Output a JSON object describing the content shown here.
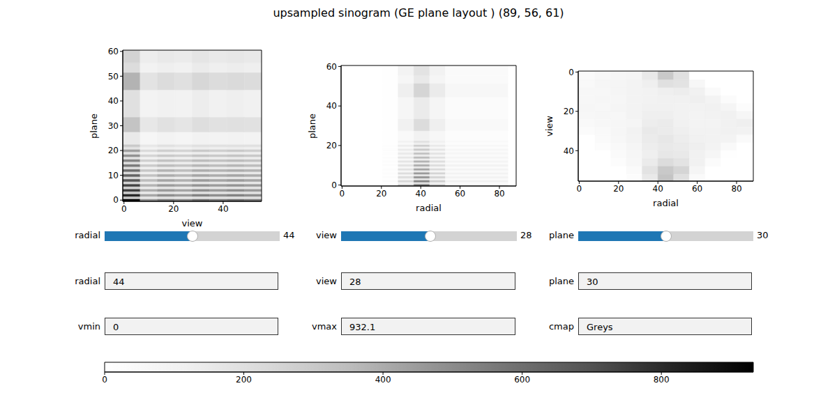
{
  "title": "upsampled sinogram (GE plane layout ) (89, 56, 61)",
  "chart_data": [
    {
      "type": "heatmap",
      "x_label": "view",
      "y_label": "plane",
      "xlim": [
        -0.5,
        55.5
      ],
      "ylim": [
        -0.5,
        60.5
      ],
      "xticks": [
        0,
        20,
        40
      ],
      "yticks": [
        0,
        10,
        20,
        30,
        40,
        50,
        60
      ],
      "x_edges": [
        -0.5,
        6.5,
        13.5,
        20.5,
        27.5,
        34.5,
        41.5,
        48.5,
        55.5
      ],
      "y_edges": [
        -0.5,
        0.5,
        1.5,
        2.5,
        3.5,
        4.5,
        5.5,
        6.5,
        7.5,
        8.5,
        9.5,
        10.5,
        11.5,
        12.5,
        13.5,
        14.5,
        15.5,
        16.5,
        17.5,
        18.5,
        19.5,
        20.5,
        21.5,
        22.5,
        27.5,
        33.5,
        44.5,
        51.5,
        55.5,
        60.5
      ],
      "cells": [
        [
          930,
          480,
          560,
          520,
          600,
          560,
          600,
          560
        ],
        [
          300,
          160,
          190,
          170,
          200,
          190,
          200,
          190
        ],
        [
          820,
          420,
          500,
          460,
          540,
          500,
          540,
          500
        ],
        [
          280,
          150,
          180,
          160,
          190,
          180,
          190,
          180
        ],
        [
          760,
          400,
          460,
          430,
          500,
          460,
          500,
          460
        ],
        [
          260,
          140,
          170,
          150,
          180,
          170,
          180,
          170
        ],
        [
          740,
          380,
          450,
          420,
          480,
          450,
          480,
          450
        ],
        [
          250,
          140,
          160,
          150,
          170,
          160,
          170,
          160
        ],
        [
          680,
          350,
          420,
          390,
          450,
          420,
          450,
          420
        ],
        [
          240,
          130,
          160,
          140,
          170,
          160,
          170,
          160
        ],
        [
          640,
          330,
          400,
          370,
          420,
          400,
          420,
          400
        ],
        [
          230,
          120,
          150,
          140,
          160,
          150,
          160,
          150
        ],
        [
          600,
          310,
          380,
          350,
          400,
          380,
          400,
          380
        ],
        [
          220,
          120,
          140,
          130,
          150,
          140,
          150,
          140
        ],
        [
          560,
          290,
          350,
          320,
          370,
          350,
          370,
          350
        ],
        [
          210,
          110,
          140,
          130,
          150,
          140,
          150,
          140
        ],
        [
          520,
          270,
          330,
          300,
          350,
          330,
          350,
          330
        ],
        [
          200,
          110,
          130,
          120,
          140,
          130,
          140,
          130
        ],
        [
          480,
          250,
          300,
          280,
          320,
          300,
          320,
          300
        ],
        [
          190,
          100,
          120,
          110,
          130,
          120,
          130,
          120
        ],
        [
          440,
          230,
          280,
          260,
          300,
          280,
          300,
          280
        ],
        [
          180,
          100,
          120,
          110,
          130,
          120,
          130,
          120
        ],
        [
          300,
          160,
          190,
          170,
          200,
          190,
          200,
          190
        ],
        [
          150,
          70,
          90,
          80,
          100,
          90,
          100,
          90
        ],
        [
          320,
          160,
          190,
          170,
          210,
          190,
          200,
          190
        ],
        [
          200,
          90,
          110,
          100,
          130,
          110,
          120,
          110
        ],
        [
          380,
          180,
          220,
          200,
          240,
          220,
          230,
          220
        ],
        [
          220,
          100,
          120,
          110,
          140,
          120,
          130,
          120
        ],
        [
          260,
          130,
          150,
          140,
          170,
          150,
          160,
          150
        ]
      ]
    },
    {
      "type": "heatmap",
      "x_label": "radial",
      "y_label": "plane",
      "xlim": [
        -0.5,
        88.5
      ],
      "ylim": [
        -0.5,
        60.5
      ],
      "xticks": [
        0,
        20,
        40,
        60,
        80
      ],
      "yticks": [
        0,
        20,
        40,
        60
      ],
      "x_edges": [
        -0.5,
        20.5,
        28.5,
        36.5,
        44.5,
        52.5,
        84.5,
        88.5
      ],
      "y_edges": [
        -0.5,
        0.5,
        1.5,
        2.5,
        3.5,
        4.5,
        5.5,
        6.5,
        7.5,
        8.5,
        9.5,
        10.5,
        11.5,
        12.5,
        13.5,
        14.5,
        15.5,
        16.5,
        17.5,
        18.5,
        19.5,
        20.5,
        21.5,
        22.5,
        27.5,
        33.5,
        44.5,
        51.5,
        55.5,
        60.5
      ],
      "cells": [
        [
          0,
          30,
          260,
          560,
          300,
          120,
          0
        ],
        [
          0,
          10,
          90,
          180,
          100,
          40,
          0
        ],
        [
          0,
          30,
          240,
          520,
          280,
          110,
          0
        ],
        [
          0,
          10,
          80,
          170,
          90,
          40,
          0
        ],
        [
          0,
          25,
          220,
          480,
          260,
          100,
          0
        ],
        [
          0,
          10,
          80,
          160,
          90,
          35,
          0
        ],
        [
          0,
          25,
          210,
          450,
          250,
          100,
          0
        ],
        [
          0,
          10,
          70,
          150,
          80,
          35,
          0
        ],
        [
          0,
          20,
          190,
          420,
          230,
          90,
          0
        ],
        [
          0,
          10,
          70,
          150,
          80,
          30,
          0
        ],
        [
          0,
          20,
          180,
          400,
          220,
          90,
          0
        ],
        [
          0,
          10,
          70,
          140,
          80,
          30,
          0
        ],
        [
          0,
          20,
          170,
          380,
          210,
          80,
          0
        ],
        [
          0,
          10,
          60,
          130,
          70,
          30,
          0
        ],
        [
          0,
          20,
          160,
          350,
          190,
          80,
          0
        ],
        [
          0,
          10,
          60,
          130,
          70,
          30,
          0
        ],
        [
          0,
          15,
          150,
          330,
          180,
          70,
          0
        ],
        [
          0,
          10,
          60,
          120,
          70,
          30,
          0
        ],
        [
          0,
          15,
          140,
          300,
          170,
          70,
          0
        ],
        [
          0,
          10,
          50,
          120,
          60,
          25,
          0
        ],
        [
          0,
          15,
          130,
          280,
          150,
          60,
          0
        ],
        [
          0,
          10,
          50,
          110,
          60,
          25,
          0
        ],
        [
          0,
          10,
          90,
          190,
          100,
          40,
          0
        ],
        [
          0,
          5,
          50,
          100,
          60,
          25,
          0
        ],
        [
          0,
          10,
          110,
          220,
          120,
          50,
          0
        ],
        [
          0,
          5,
          70,
          140,
          80,
          30,
          0
        ],
        [
          0,
          10,
          120,
          250,
          140,
          60,
          0
        ],
        [
          0,
          5,
          70,
          150,
          80,
          35,
          0
        ],
        [
          0,
          10,
          90,
          180,
          100,
          40,
          0
        ]
      ]
    },
    {
      "type": "heatmap",
      "x_label": "radial",
      "y_label": "view",
      "xlim": [
        -0.5,
        88.5
      ],
      "ylim": [
        55.5,
        -0.5
      ],
      "xticks": [
        0,
        20,
        40,
        60,
        80
      ],
      "yticks": [
        0,
        20,
        40
      ],
      "x_edges": [
        -0.5,
        8,
        16,
        24,
        32,
        40,
        48,
        56,
        64,
        72,
        80,
        88.5
      ],
      "y_edges": [
        -0.5,
        4,
        8,
        12,
        16,
        20,
        24,
        28,
        32,
        36,
        40,
        44,
        48,
        52,
        55.5
      ],
      "cells": [
        [
          40,
          60,
          70,
          80,
          150,
          300,
          200,
          0,
          0,
          0,
          0
        ],
        [
          50,
          70,
          80,
          90,
          120,
          200,
          180,
          60,
          0,
          0,
          0
        ],
        [
          60,
          60,
          80,
          90,
          100,
          120,
          130,
          110,
          40,
          0,
          0
        ],
        [
          60,
          70,
          70,
          90,
          100,
          110,
          110,
          120,
          90,
          30,
          0
        ],
        [
          70,
          60,
          80,
          90,
          110,
          110,
          100,
          100,
          110,
          80,
          20
        ],
        [
          60,
          70,
          60,
          90,
          120,
          120,
          100,
          90,
          100,
          110,
          70
        ],
        [
          50,
          60,
          70,
          80,
          130,
          140,
          110,
          90,
          90,
          110,
          120
        ],
        [
          30,
          50,
          70,
          100,
          150,
          140,
          120,
          100,
          100,
          110,
          100
        ],
        [
          0,
          40,
          60,
          90,
          140,
          160,
          130,
          110,
          100,
          90,
          40
        ],
        [
          0,
          20,
          50,
          80,
          130,
          150,
          140,
          120,
          90,
          50,
          0
        ],
        [
          0,
          0,
          40,
          70,
          120,
          160,
          150,
          110,
          70,
          10,
          0
        ],
        [
          0,
          0,
          20,
          60,
          140,
          220,
          180,
          110,
          30,
          0,
          0
        ],
        [
          0,
          0,
          0,
          40,
          180,
          300,
          250,
          80,
          0,
          0,
          0
        ],
        [
          0,
          0,
          0,
          20,
          150,
          320,
          200,
          40,
          0,
          0,
          0
        ]
      ]
    }
  ],
  "colorbar": {
    "range": [
      0,
      932.1
    ],
    "ticks": [
      0,
      200,
      400,
      600,
      800
    ],
    "cmap": "Greys"
  },
  "sliders": [
    {
      "label": "radial",
      "value": 44,
      "min": 0,
      "max": 88
    },
    {
      "label": "view",
      "value": 28,
      "min": 0,
      "max": 55
    },
    {
      "label": "plane",
      "value": 30,
      "min": 0,
      "max": 60
    }
  ],
  "text_boxes": [
    [
      {
        "label": "radial",
        "value": "44"
      },
      {
        "label": "view",
        "value": "28"
      },
      {
        "label": "plane",
        "value": "30"
      }
    ],
    [
      {
        "label": "vmin",
        "value": "0"
      },
      {
        "label": "vmax",
        "value": "932.1"
      },
      {
        "label": "cmap",
        "value": "Greys"
      }
    ]
  ]
}
